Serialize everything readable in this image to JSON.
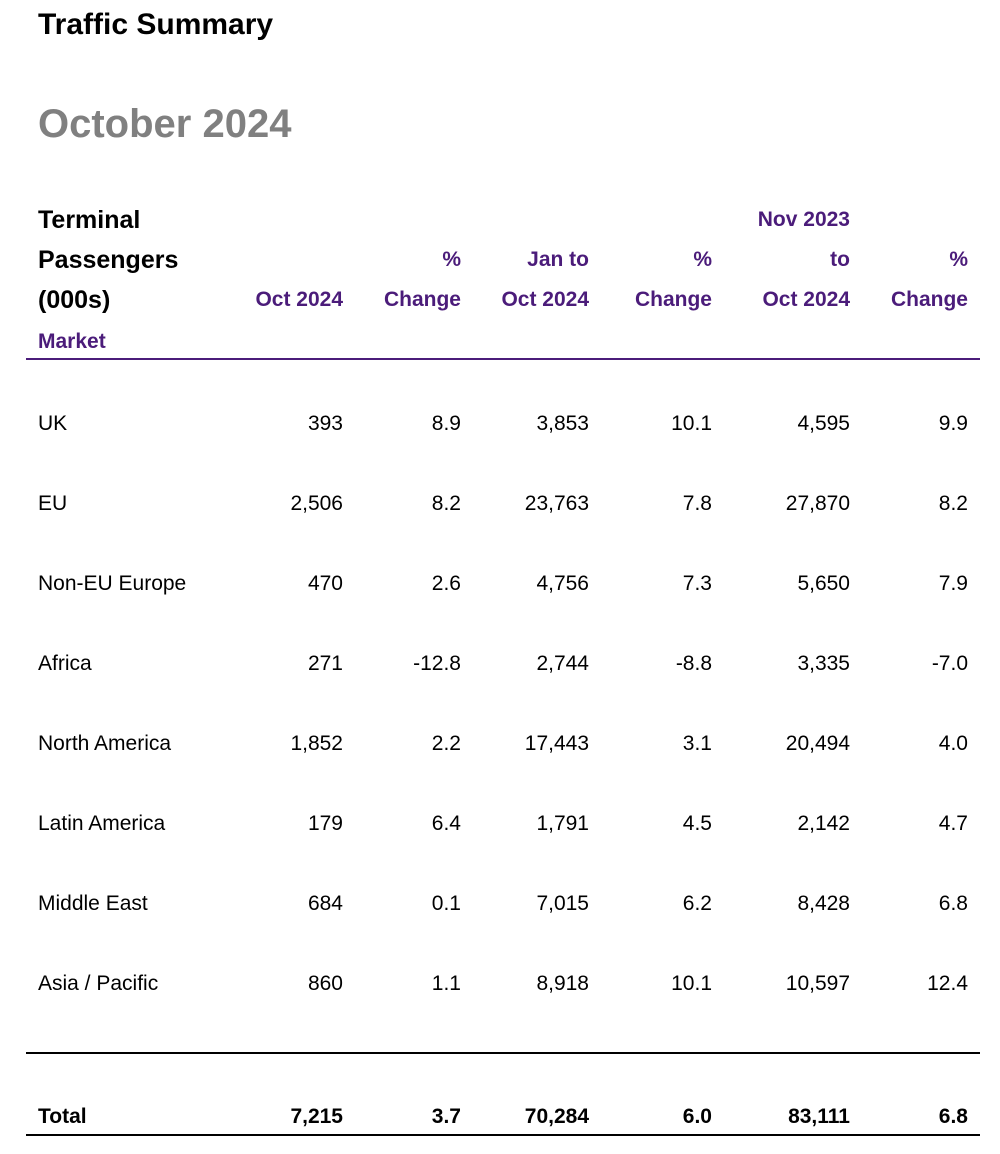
{
  "title": "Traffic Summary",
  "period": "October 2024",
  "table": {
    "label_lines": [
      "Terminal",
      "Passengers",
      "(000s)"
    ],
    "market_header": "Market",
    "columns": [
      {
        "lines": [
          "",
          "",
          "Oct 2024"
        ]
      },
      {
        "lines": [
          "",
          "%",
          "Change"
        ]
      },
      {
        "lines": [
          "",
          "Jan to",
          "Oct 2024"
        ]
      },
      {
        "lines": [
          "",
          "%",
          "Change"
        ]
      },
      {
        "lines": [
          "Nov 2023",
          "to",
          "Oct 2024"
        ]
      },
      {
        "lines": [
          "",
          "%",
          "Change"
        ]
      }
    ],
    "rows": [
      {
        "market": "UK",
        "values": [
          "393",
          "8.9",
          "3,853",
          "10.1",
          "4,595",
          "9.9"
        ]
      },
      {
        "market": "EU",
        "values": [
          "2,506",
          "8.2",
          "23,763",
          "7.8",
          "27,870",
          "8.2"
        ]
      },
      {
        "market": "Non-EU Europe",
        "values": [
          "470",
          "2.6",
          "4,756",
          "7.3",
          "5,650",
          "7.9"
        ]
      },
      {
        "market": "Africa",
        "values": [
          "271",
          "-12.8",
          "2,744",
          "-8.8",
          "3,335",
          "-7.0"
        ]
      },
      {
        "market": "North America",
        "values": [
          "1,852",
          "2.2",
          "17,443",
          "3.1",
          "20,494",
          "4.0"
        ]
      },
      {
        "market": "Latin America",
        "values": [
          "179",
          "6.4",
          "1,791",
          "4.5",
          "2,142",
          "4.7"
        ]
      },
      {
        "market": "Middle East",
        "values": [
          "684",
          "0.1",
          "7,015",
          "6.2",
          "8,428",
          "6.8"
        ]
      },
      {
        "market": "Asia / Pacific",
        "values": [
          "860",
          "1.1",
          "8,918",
          "10.1",
          "10,597",
          "12.4"
        ]
      }
    ],
    "total": {
      "market": "Total",
      "values": [
        "7,215",
        "3.7",
        "70,284",
        "6.0",
        "83,111",
        "6.8"
      ]
    }
  },
  "colors": {
    "accent": "#4b1c7a",
    "period_title": "#808080",
    "text": "#000000"
  }
}
